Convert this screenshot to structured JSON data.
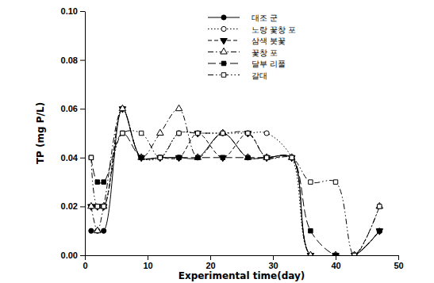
{
  "chart_data": {
    "type": "line",
    "x_label": "Experimental time(day)",
    "y_label": "TP (mg P/L)",
    "x": [
      1,
      2,
      3,
      6,
      9,
      12,
      15,
      18,
      22,
      26,
      29,
      33,
      36,
      40,
      43,
      47
    ],
    "xlim": [
      0,
      50
    ],
    "xticks": [
      0,
      10,
      20,
      30,
      40,
      50
    ],
    "ylim": [
      0,
      0.1
    ],
    "yticks": [
      {
        "value": 0,
        "label": "0.00"
      },
      {
        "value": 0.02,
        "label": "0.02"
      },
      {
        "value": 0.04,
        "label": "0.04"
      },
      {
        "value": 0.06,
        "label": "0.06"
      },
      {
        "value": 0.08,
        "label": "0.08"
      },
      {
        "value": 0.1,
        "label": "0.10"
      }
    ],
    "grid": false,
    "legend": "upper right",
    "series": [
      {
        "name": "대조 군",
        "color": "#000000",
        "marker": "circle",
        "line_style": "solid",
        "values": [
          0.01,
          0.01,
          0.01,
          0.06,
          0.04,
          0.04,
          0.04,
          0.04,
          0.05,
          0.04,
          0.04,
          0.04,
          0,
          0,
          0,
          0.01
        ]
      },
      {
        "name": "노랑 꽃창 포",
        "color": "#000000",
        "marker": "circle-open",
        "line_style": "dotted",
        "values": [
          0.02,
          0.02,
          0.02,
          0.06,
          0.04,
          0.04,
          0.05,
          0.05,
          0.05,
          0.05,
          0.05,
          0.04,
          0,
          0,
          0,
          0.01
        ]
      },
      {
        "name": "삼색 붓꽃",
        "color": "#000000",
        "marker": "triangle-down",
        "line_style": "dashed",
        "values": [
          0.02,
          0.02,
          0.02,
          0.06,
          0.04,
          0.04,
          0.04,
          0.05,
          0.04,
          0.05,
          0.04,
          0.04,
          0,
          0,
          0,
          0.01
        ]
      },
      {
        "name": "꽃창 포",
        "color": "#000000",
        "marker": "triangle-up-open",
        "line_style": "dashdot",
        "values": [
          0.02,
          0.01,
          0.02,
          0.06,
          0.04,
          0.05,
          0.06,
          0.04,
          0.05,
          0.04,
          0.04,
          0.04,
          0,
          0,
          0,
          0.02
        ]
      },
      {
        "name": "달부 리풀",
        "color": "#000000",
        "marker": "square",
        "line_style": "longdash",
        "values": [
          0.04,
          0.03,
          0.03,
          0.05,
          0.04,
          0.04,
          0.04,
          0.04,
          0.04,
          0.04,
          0.04,
          0.04,
          0.01,
          0,
          0,
          0.01
        ]
      },
      {
        "name": "갈대",
        "color": "#000000",
        "marker": "square-open",
        "line_style": "dashdotdot",
        "values": [
          0.04,
          0.02,
          0.02,
          0.05,
          0.05,
          0.04,
          0.05,
          0.05,
          0.05,
          0.05,
          0.04,
          0.04,
          0.03,
          0.03,
          0,
          0.02
        ]
      }
    ]
  }
}
